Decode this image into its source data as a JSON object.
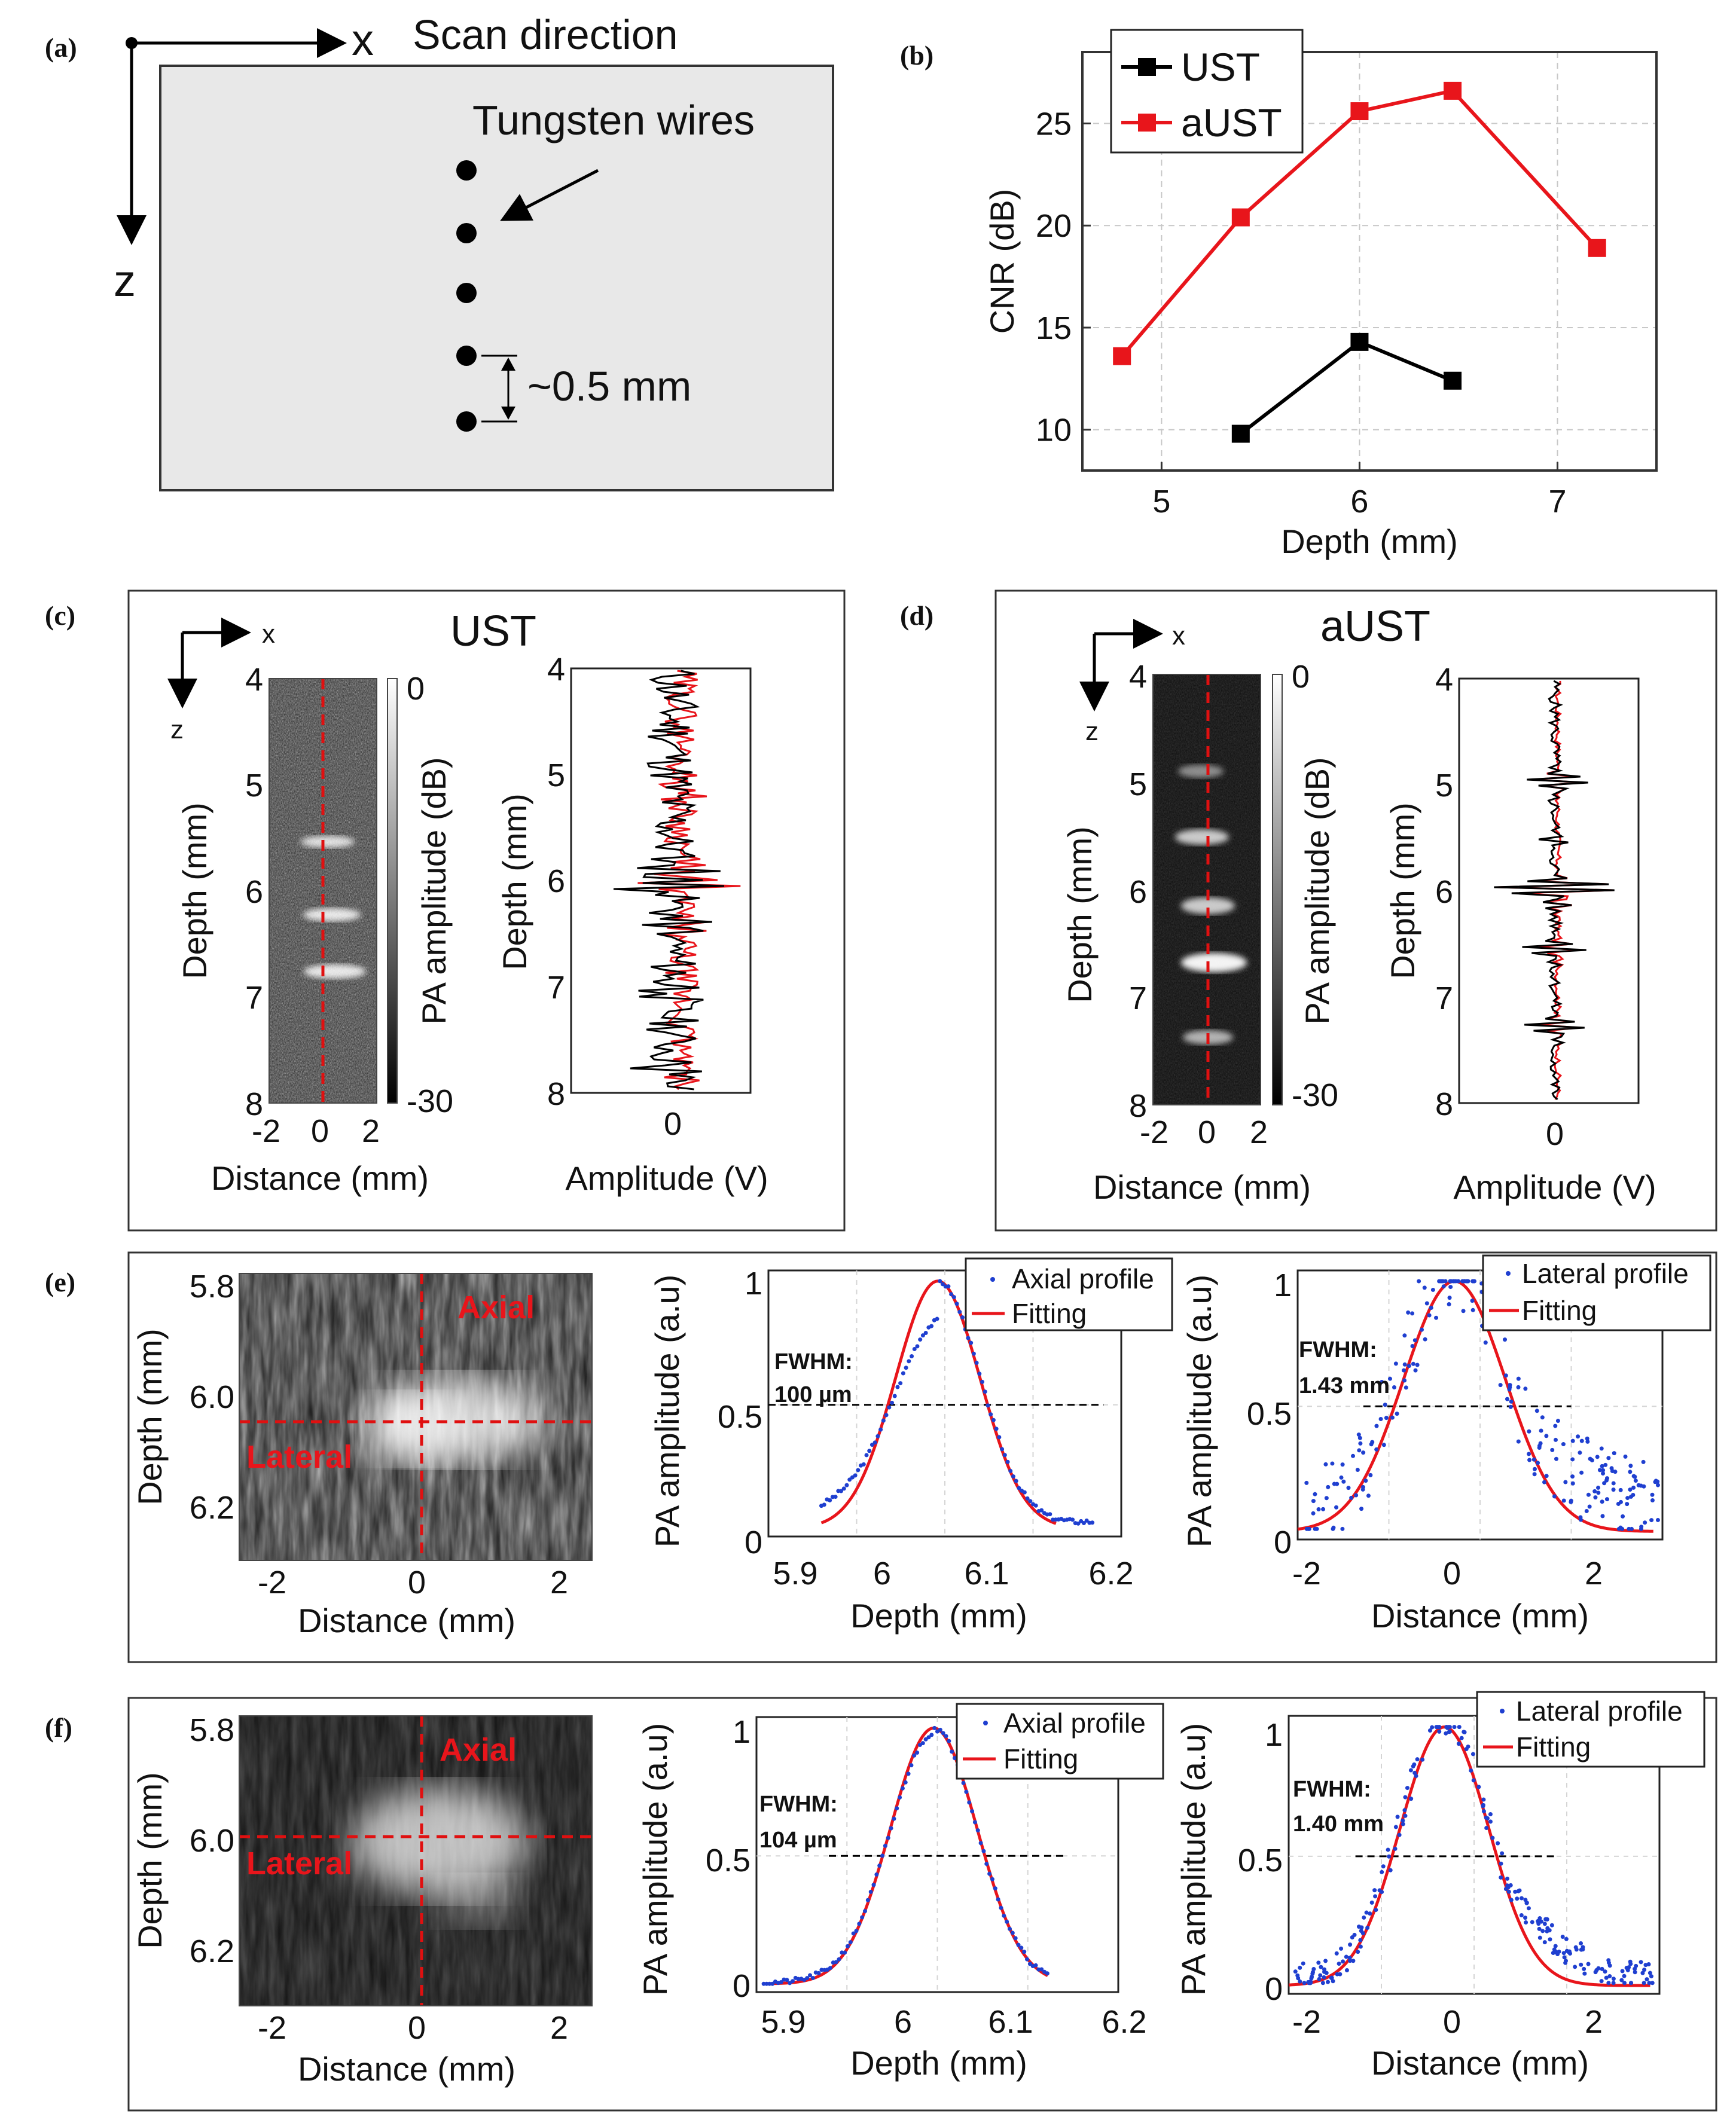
{
  "panel_labels": [
    "(a)",
    "(b)",
    "(c)",
    "(d)",
    "(e)",
    "(f)"
  ],
  "colors": {
    "ust": "#000000",
    "aust": "#e8151b",
    "profile_points": "#1f3fd0",
    "fit": "#e8151b",
    "dashed": "#e01010"
  },
  "panel_a": {
    "x_label": "x",
    "z_label": "z",
    "scan_direction": "Scan direction",
    "wires_label": "Tungsten wires",
    "spacing_label": "~0.5 mm"
  },
  "panel_c": {
    "title": "UST",
    "axis_x": "x",
    "axis_z": "z",
    "image_xlabel": "Distance (mm)",
    "image_ylabel": "Depth (mm)",
    "image_xticks": [
      "-2",
      "0",
      "2"
    ],
    "image_yticks": [
      "4",
      "5",
      "6",
      "7",
      "8"
    ],
    "colorbar_label": "PA amplitude (dB)",
    "colorbar_ticks": [
      "0",
      "-30"
    ],
    "signal_xlabel": "Amplitude (V)",
    "signal_ylabel": "Depth (mm)",
    "signal_xticks": [
      "0"
    ],
    "signal_yticks": [
      "4",
      "5",
      "6",
      "7",
      "8"
    ]
  },
  "panel_d": {
    "title": "aUST",
    "axis_x": "x",
    "axis_z": "z",
    "image_xlabel": "Distance (mm)",
    "image_ylabel": "Depth (mm)",
    "image_xticks": [
      "-2",
      "0",
      "2"
    ],
    "image_yticks": [
      "4",
      "5",
      "6",
      "7",
      "8"
    ],
    "colorbar_label": "PA amplitude (dB)",
    "colorbar_ticks": [
      "0",
      "-30"
    ],
    "signal_xlabel": "Amplitude (V)",
    "signal_ylabel": "Depth (mm)",
    "signal_xticks": [
      "0"
    ],
    "signal_yticks": [
      "4",
      "5",
      "6",
      "7",
      "8"
    ]
  },
  "panel_e": {
    "image": {
      "xlabel": "Distance (mm)",
      "ylabel": "Depth (mm)",
      "xticks": [
        "-2",
        "0",
        "2"
      ],
      "yticks": [
        "5.8",
        "6.0",
        "6.2"
      ],
      "axial_label": "Axial",
      "lateral_label": "Lateral"
    },
    "axial_plot": {
      "xlabel": "Depth (mm)",
      "ylabel": "PA amplitude (a.u)",
      "xticks": [
        "5.9",
        "6",
        "6.1",
        "6.2"
      ],
      "yticks": [
        "0",
        "0.5",
        "1"
      ],
      "legend": [
        "Axial profile",
        "Fitting"
      ],
      "fwhm_title": "FWHM:",
      "fwhm_value": "100 µm"
    },
    "lateral_plot": {
      "xlabel": "Distance (mm)",
      "ylabel": "PA amplitude (a.u)",
      "xticks": [
        "-2",
        "0",
        "2"
      ],
      "yticks": [
        "0",
        "0.5",
        "1"
      ],
      "legend": [
        "Lateral profile",
        "Fitting"
      ],
      "fwhm_title": "FWHM:",
      "fwhm_value": "1.43 mm"
    }
  },
  "panel_f": {
    "image": {
      "xlabel": "Distance (mm)",
      "ylabel": "Depth (mm)",
      "xticks": [
        "-2",
        "0",
        "2"
      ],
      "yticks": [
        "5.8",
        "6.0",
        "6.2"
      ],
      "axial_label": "Axial",
      "lateral_label": "Lateral"
    },
    "axial_plot": {
      "xlabel": "Depth (mm)",
      "ylabel": "PA amplitude (a.u)",
      "xticks": [
        "5.9",
        "6",
        "6.1",
        "6.2"
      ],
      "yticks": [
        "0",
        "0.5",
        "1"
      ],
      "legend": [
        "Axial profile",
        "Fitting"
      ],
      "fwhm_title": "FWHM:",
      "fwhm_value": "104 µm"
    },
    "lateral_plot": {
      "xlabel": "Distance (mm)",
      "ylabel": "PA amplitude (a.u)",
      "xticks": [
        "-2",
        "0",
        "2"
      ],
      "yticks": [
        "0",
        "0.5",
        "1"
      ],
      "legend": [
        "Lateral profile",
        "Fitting"
      ],
      "fwhm_title": "FWHM:",
      "fwhm_value": "1.40 mm"
    }
  },
  "chart_data": [
    {
      "id": "b",
      "type": "line",
      "title": "",
      "xlabel": "Depth (mm)",
      "ylabel": "CNR (dB)",
      "xlim": [
        4.6,
        7.5
      ],
      "ylim": [
        8,
        28.5
      ],
      "xticks": [
        5,
        6,
        7
      ],
      "yticks": [
        10,
        15,
        20,
        25
      ],
      "grid": true,
      "legend_position": "top-left",
      "series": [
        {
          "name": "UST",
          "x": [
            5.4,
            6.0,
            6.47
          ],
          "y": [
            9.8,
            14.3,
            12.4
          ]
        },
        {
          "name": "aUST",
          "x": [
            4.8,
            5.4,
            6.0,
            6.47,
            7.2
          ],
          "y": [
            13.6,
            20.4,
            25.6,
            26.6,
            18.9
          ]
        }
      ]
    }
  ]
}
